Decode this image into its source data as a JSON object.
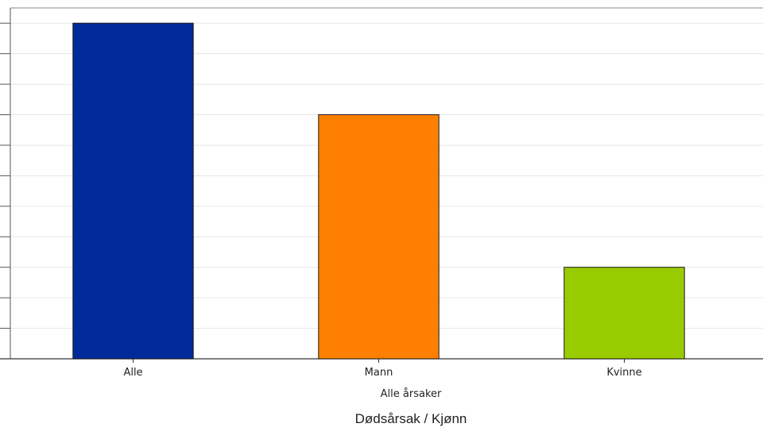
{
  "chart_data": {
    "type": "bar",
    "categories": [
      "Alle",
      "Mann",
      "Kvinne"
    ],
    "values": [
      11,
      8,
      3
    ],
    "colors": [
      "#002a99",
      "#ff8000",
      "#99cc00"
    ],
    "group_label": "Alle årsaker",
    "xlabel": "Dødsårsak / Kjønn",
    "ylabel": "",
    "ylim": [
      0,
      11.5
    ],
    "grid": true,
    "legend": "none"
  }
}
